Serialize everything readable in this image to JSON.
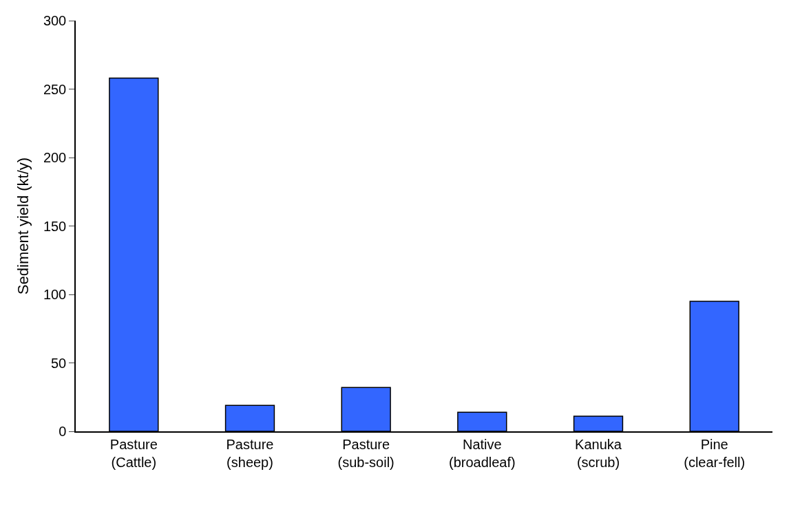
{
  "chart_data": {
    "type": "bar",
    "ylabel": "Sediment yield (kt/y)",
    "categories": [
      "Pasture\n(Cattle)",
      "Pasture\n(sheep)",
      "Pasture\n(sub-soil)",
      "Native\n(broadleaf)",
      "Kanuka\n(scrub)",
      "Pine\n(clear-fell)"
    ],
    "values": [
      258,
      19,
      32,
      14,
      11,
      95
    ],
    "color": "#3366ff",
    "ylim": [
      0,
      300
    ],
    "yticks": [
      0,
      50,
      100,
      150,
      200,
      250,
      300
    ]
  }
}
